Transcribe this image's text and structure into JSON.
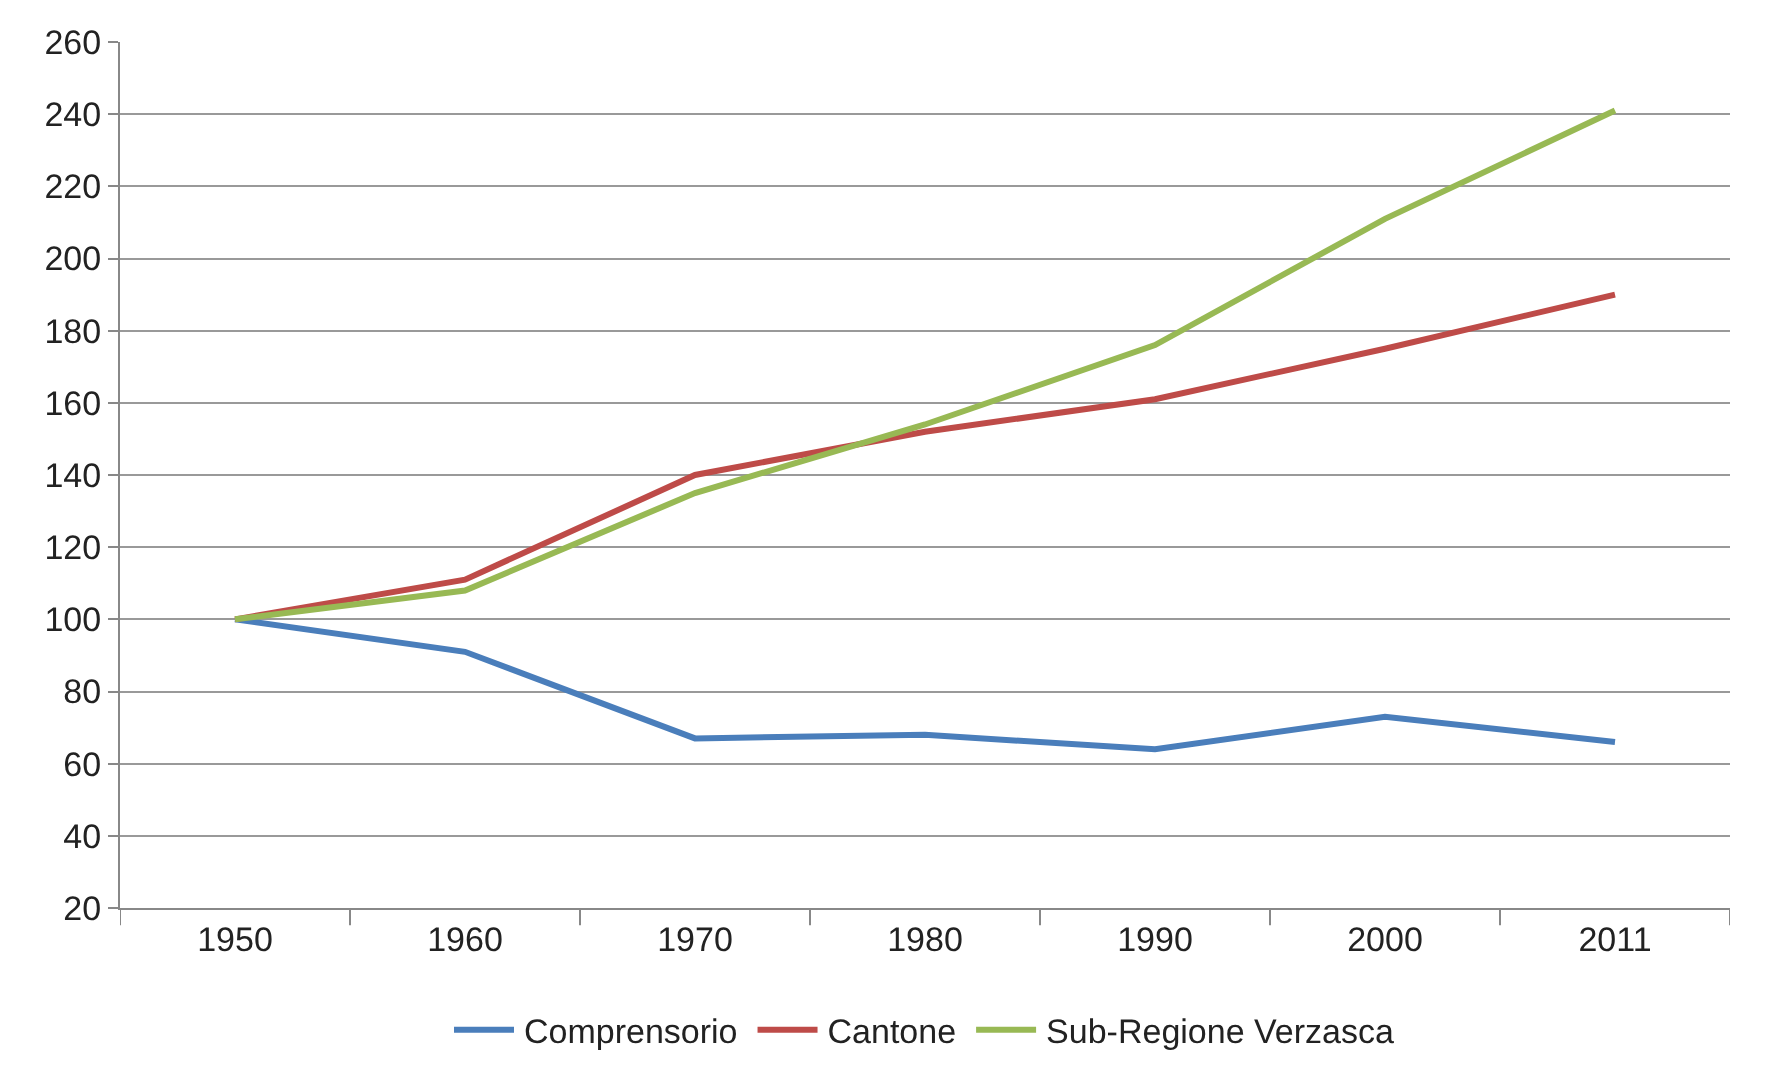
{
  "chart_data": {
    "type": "line",
    "categories": [
      "1950",
      "1960",
      "1970",
      "1980",
      "1990",
      "2000",
      "2011"
    ],
    "series": [
      {
        "name": "Comprensorio",
        "color": "#4a7ebb",
        "values": [
          100,
          91,
          67,
          68,
          64,
          73,
          66
        ]
      },
      {
        "name": "Cantone",
        "color": "#be4b48",
        "values": [
          100,
          111,
          140,
          152,
          161,
          175,
          190
        ]
      },
      {
        "name": "Sub-Regione Verzasca",
        "color": "#98b954",
        "values": [
          100,
          108,
          135,
          154,
          176,
          211,
          241
        ]
      }
    ],
    "ylim": [
      20,
      260
    ],
    "yticks": [
      20,
      40,
      60,
      80,
      100,
      120,
      140,
      160,
      180,
      200,
      220,
      240,
      260
    ],
    "grid": "y",
    "legend": "bottom",
    "marker": "none",
    "line_style": "solid"
  }
}
